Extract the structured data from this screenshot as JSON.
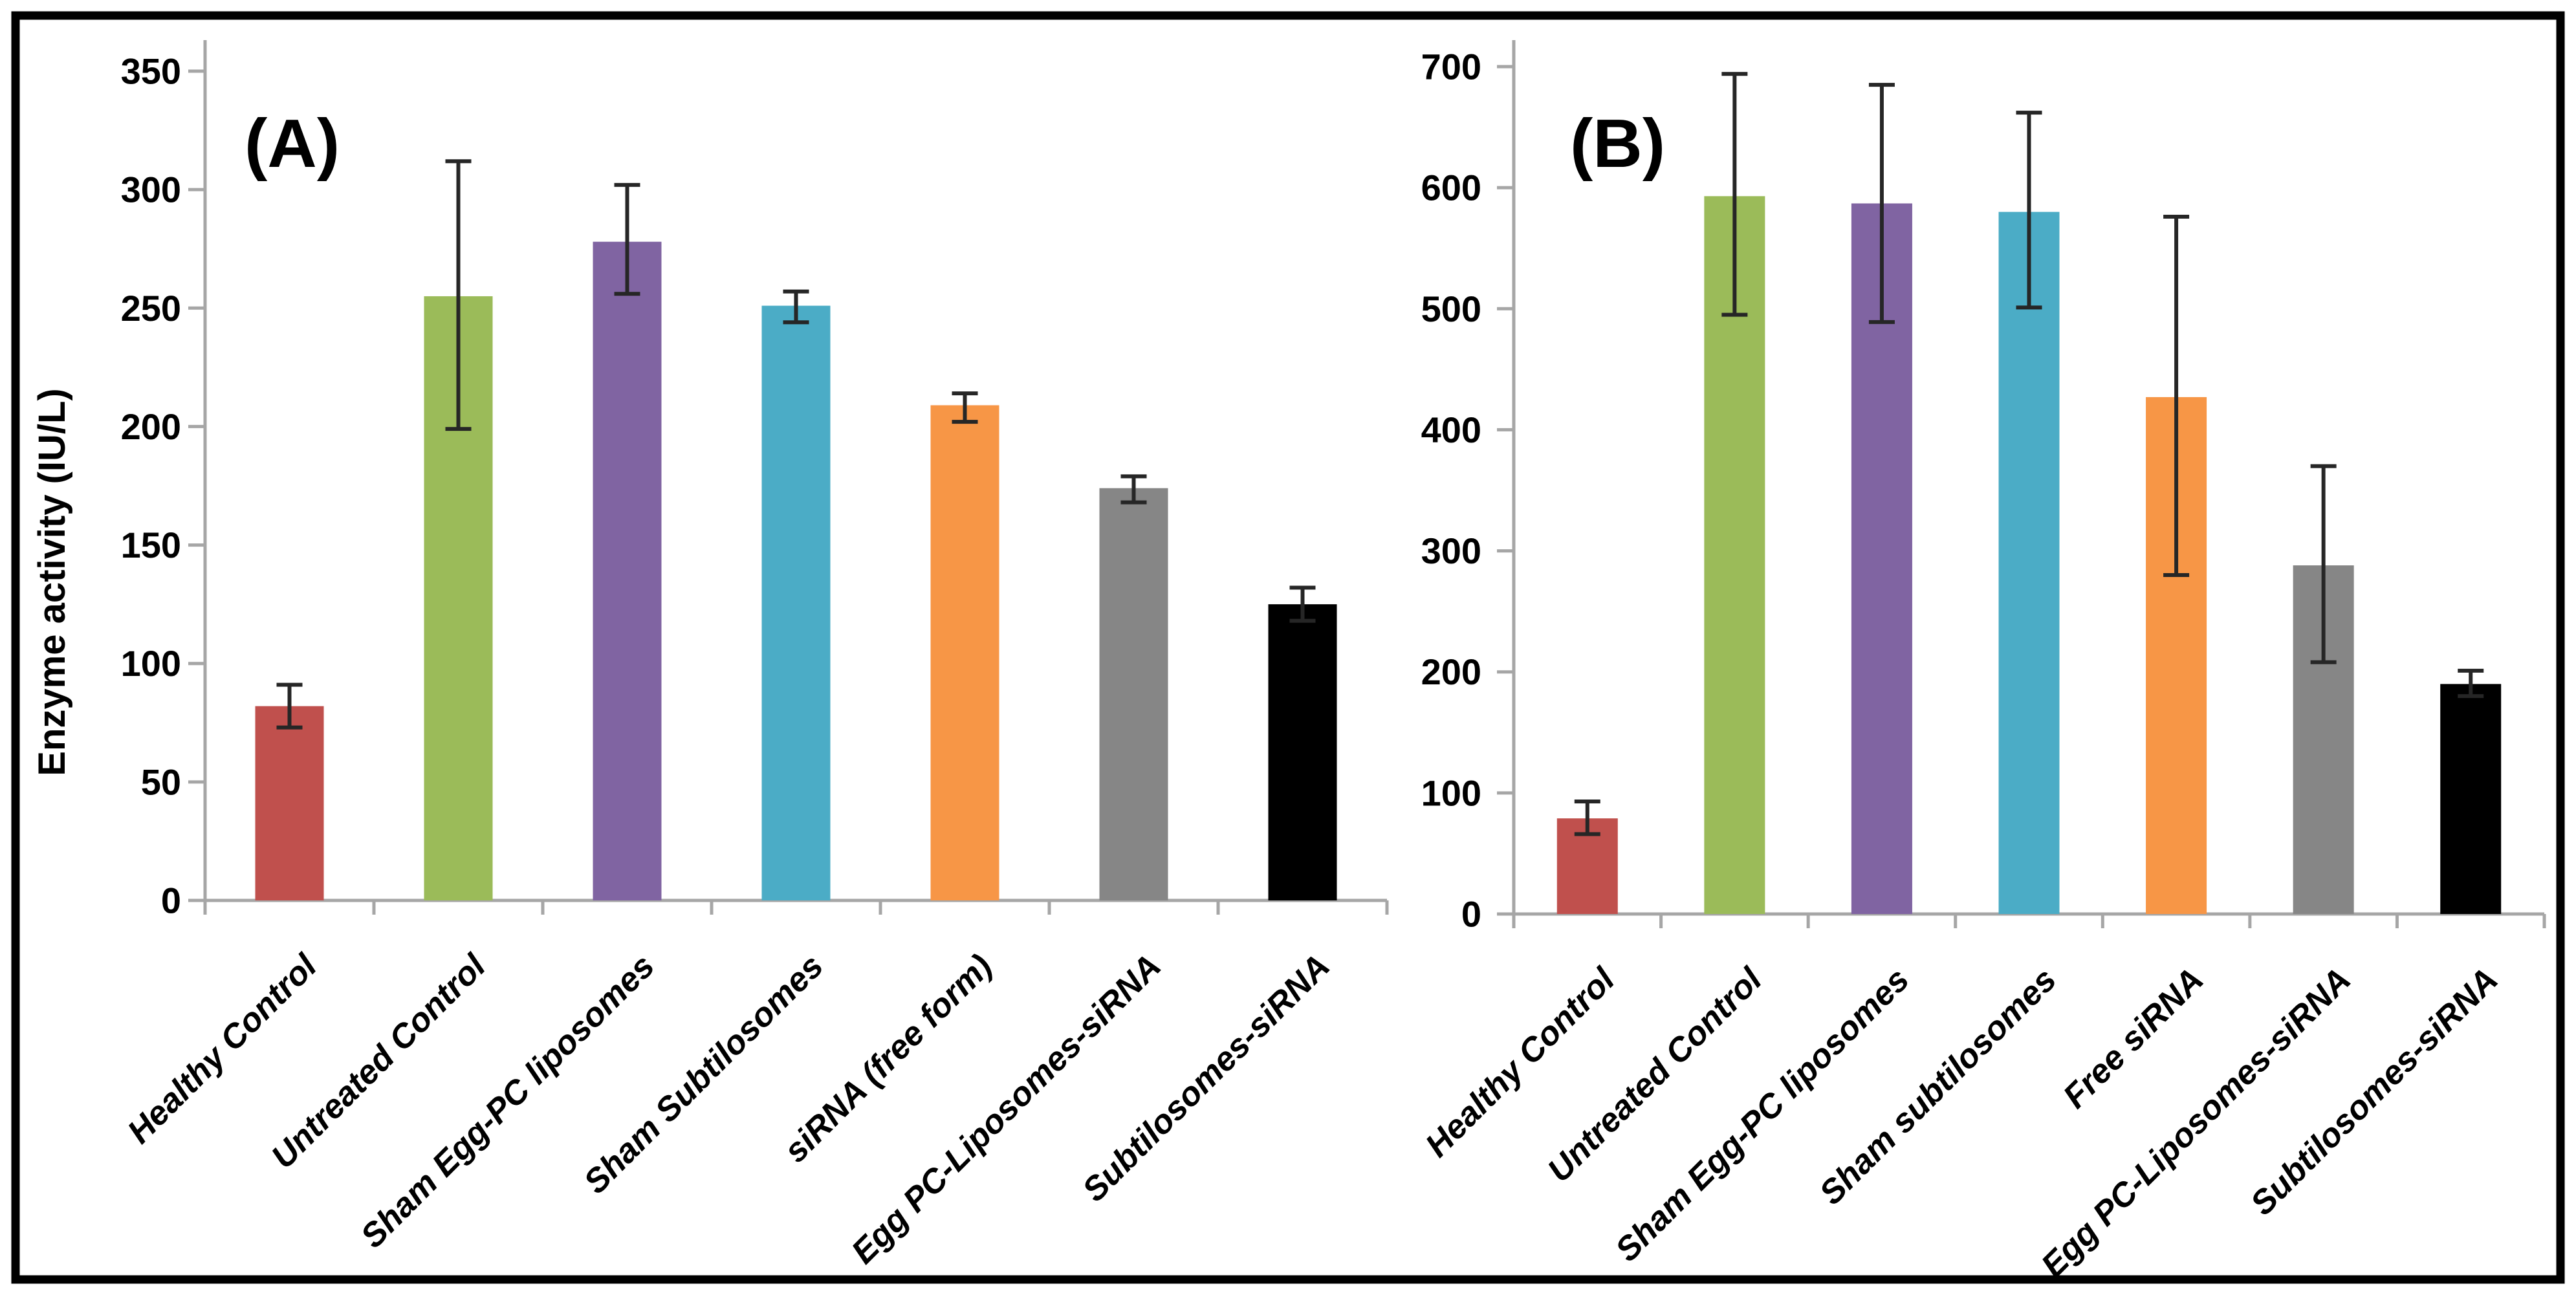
{
  "figure": {
    "background_color": "#ffffff",
    "border_color": "#000000",
    "axis_line_color": "#A6A6A6",
    "error_bar_color": "#262626",
    "text_color": "#000000"
  },
  "chart_data": [
    {
      "type": "bar",
      "panel": "A",
      "title": "(A)",
      "ylabel": "Enzyme activity (IU/L)",
      "xlabel": "",
      "ylim": [
        0,
        350
      ],
      "ytick_step": 50,
      "grid": false,
      "legend": "none",
      "x_label_rotation_deg": -45,
      "categories": [
        "Healthy Control",
        "Untreated Control",
        "Sham Egg-PC liposomes",
        "Sham Subtilosomes",
        "siRNA (free form)",
        "Egg PC-Liposomes-siRNA",
        "Subtilosomes-siRNA"
      ],
      "values": [
        82,
        255,
        278,
        251,
        209,
        174,
        125
      ],
      "error_plus": [
        9,
        57,
        24,
        6,
        5,
        5,
        7
      ],
      "error_minus": [
        9,
        56,
        22,
        7,
        7,
        6,
        7
      ],
      "bar_colors": [
        "#C0504D",
        "#9BBB59",
        "#8064A2",
        "#4BACC6",
        "#F79646",
        "#868686",
        "#000000"
      ]
    },
    {
      "type": "bar",
      "panel": "B",
      "title": "(B)",
      "ylabel": "",
      "xlabel": "",
      "ylim": [
        0,
        700
      ],
      "ytick_step": 100,
      "grid": false,
      "legend": "none",
      "x_label_rotation_deg": -45,
      "categories": [
        "Healthy Control",
        "Untreated Control",
        "Sham Egg-PC liposomes",
        "Sham subtilosomes",
        "Free siRNA",
        "Egg PC-Liposomes-siRNA",
        "Subtilosomes-siRNA"
      ],
      "values": [
        79,
        593,
        587,
        580,
        427,
        288,
        190
      ],
      "error_plus": [
        14,
        101,
        98,
        82,
        149,
        82,
        11
      ],
      "error_minus": [
        13,
        98,
        98,
        79,
        147,
        80,
        10
      ],
      "bar_colors": [
        "#C0504D",
        "#9BBB59",
        "#8064A2",
        "#4BACC6",
        "#F79646",
        "#868686",
        "#000000"
      ]
    }
  ]
}
